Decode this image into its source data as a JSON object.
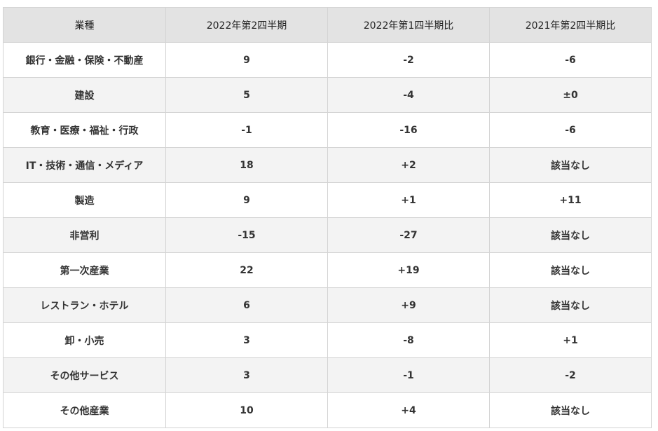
{
  "table": {
    "header": [
      "業種",
      "2022年第2四半期",
      "2022年第1四半期比",
      "2021年第2四半期比"
    ],
    "rows": [
      [
        "銀行・金融・保険・不動産",
        "9",
        "-2",
        "-6"
      ],
      [
        "建設",
        "5",
        "-4",
        "±0"
      ],
      [
        "教育・医療・福祉・行政",
        "-1",
        "-16",
        "-6"
      ],
      [
        "IT・技術・通信・メディア",
        "18",
        "+2",
        "該当なし"
      ],
      [
        "製造",
        "9",
        "+1",
        "+11"
      ],
      [
        "非営利",
        "-15",
        "-27",
        "該当なし"
      ],
      [
        "第一次産業",
        "22",
        "+19",
        "該当なし"
      ],
      [
        "レストラン・ホテル",
        "6",
        "+9",
        "該当なし"
      ],
      [
        "卸・小売",
        "3",
        "-8",
        "+1"
      ],
      [
        "その他サービス",
        "3",
        "-1",
        "-2"
      ],
      [
        "その他産業",
        "10",
        "+4",
        "該当なし"
      ]
    ]
  }
}
